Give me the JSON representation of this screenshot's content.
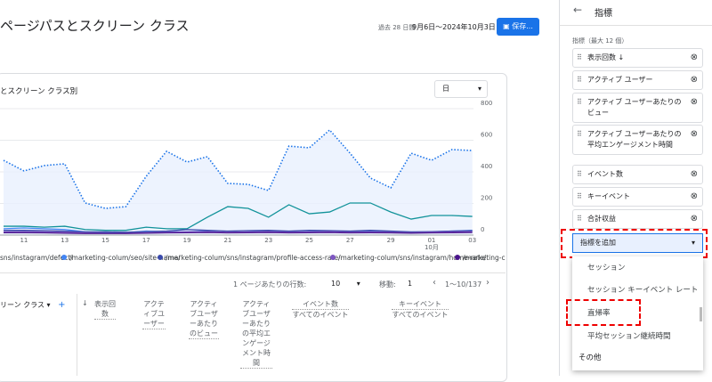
{
  "header": {
    "title": "ページパスとスクリーン クラス",
    "date_range_label": "過去 28 日間",
    "date_range": "9月6日～2024年10月3日",
    "save_button": "保存..."
  },
  "card": {
    "subtitle": "とスクリーン クラス別",
    "granularity": "日"
  },
  "chart_data": {
    "type": "line",
    "categories": [
      null,
      "11",
      null,
      "13",
      null,
      "15",
      null,
      "17",
      null,
      "19",
      null,
      "21",
      null,
      "23",
      null,
      "25",
      null,
      "27",
      null,
      "29",
      null,
      "01",
      null,
      "03"
    ],
    "month_label": "10月",
    "ylim": [
      0,
      800
    ],
    "yticks": [
      0,
      200,
      400,
      600,
      800
    ],
    "grid": true,
    "series": [
      {
        "color": "#1a73e8",
        "dashed": true,
        "area": true,
        "values": [
          473,
          406,
          440,
          451,
          203,
          169,
          180,
          372,
          530,
          462,
          496,
          327,
          321,
          282,
          563,
          552,
          665,
          518,
          361,
          299,
          518,
          473,
          541,
          535
        ]
      },
      {
        "name": "sns/instagram/defect/",
        "color": "#12939a",
        "values": [
          56,
          56,
          50,
          56,
          35,
          30,
          30,
          50,
          40,
          40,
          113,
          180,
          169,
          113,
          192,
          135,
          146,
          203,
          203,
          146,
          101,
          124,
          124,
          118
        ]
      },
      {
        "name": "/marketing-colum/seo/site-name/",
        "color": "#4285f4",
        "values": [
          40,
          45,
          40,
          35,
          20,
          15,
          15,
          25,
          20,
          20,
          25,
          15,
          20,
          25,
          20,
          20,
          25,
          20,
          25,
          20,
          15,
          20,
          25,
          30
        ]
      },
      {
        "name": "/marketing-colum/sns/instagram/profile-access-rate/",
        "color": "#3949ab",
        "values": [
          30,
          30,
          28,
          25,
          20,
          20,
          18,
          22,
          25,
          35,
          30,
          25,
          28,
          30,
          25,
          30,
          28,
          25,
          30,
          25,
          20,
          22,
          25,
          28
        ]
      },
      {
        "name": "/marketing-colum/sns/instagram/home-rate/",
        "color": "#7e57c2",
        "values": [
          20,
          22,
          20,
          18,
          15,
          12,
          12,
          15,
          18,
          20,
          22,
          18,
          20,
          22,
          18,
          20,
          22,
          18,
          20,
          18,
          15,
          18,
          20,
          22
        ]
      },
      {
        "name": "/marketing-colum/sns/instagram/",
        "color": "#4a148c",
        "values": [
          15,
          15,
          14,
          12,
          10,
          10,
          10,
          12,
          14,
          15,
          16,
          14,
          15,
          16,
          14,
          15,
          16,
          14,
          15,
          14,
          12,
          14,
          15,
          16
        ]
      }
    ]
  },
  "pagination": {
    "rows_per_page_label": "1 ページあたりの行数:",
    "rows_per_page": "10",
    "goto_label": "移動:",
    "goto_value": "1",
    "range": "1～10/137"
  },
  "table": {
    "columns": [
      {
        "label": "リーン クラス"
      },
      {
        "label": "表示回数"
      },
      {
        "label": "アクティブユーザー"
      },
      {
        "label": "アクティブユーザーあたりのビュー"
      },
      {
        "label": "アクティブユーザーあたりの平均エンゲージメント時間"
      },
      {
        "label": "イベント数",
        "sublabel": "すべてのイベント"
      },
      {
        "label": "キーイベント",
        "sublabel": "すべてのイベント"
      }
    ]
  },
  "panel": {
    "title": "指標",
    "section_label": "指標（最大 12 個）",
    "metrics": [
      "表示回数",
      "アクティブ ユーザー",
      "アクティブ ユーザーあたりのビュー",
      "アクティブ ユーザーあたりの平均エンゲージメント時間",
      "イベント数",
      "キーイベント",
      "合計収益"
    ],
    "add_button": "指標を追加",
    "options": [
      "セッション",
      "セッション キーイベント レート",
      "直帰率",
      "平均セッション継続時間"
    ],
    "more": "その他"
  }
}
